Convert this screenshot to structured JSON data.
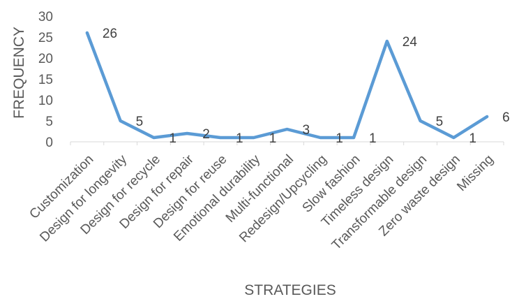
{
  "chart_data": {
    "type": "line",
    "categories": [
      "Customization",
      "Design for longevity",
      "Design for recycle",
      "Design for repair",
      "Design for reuse",
      "Emotional durability",
      "Multi-functional",
      "Redesign/Upcycling",
      "Slow fashion",
      "Timeless design",
      "Transformable design",
      "Zero waste design",
      "Missing"
    ],
    "values": [
      26,
      5,
      1,
      2,
      1,
      1,
      3,
      1,
      1,
      24,
      5,
      1,
      6
    ],
    "data_labels": [
      "26",
      "5",
      "1",
      "2",
      "1",
      "1",
      "3",
      "1",
      "1",
      "24",
      "5",
      "1",
      "6"
    ],
    "title": "",
    "xlabel": "STRATEGIES",
    "ylabel": "FREQUENCY",
    "ylim": [
      0,
      30
    ],
    "yticks": [
      "0",
      "5",
      "10",
      "15",
      "20",
      "25",
      "30"
    ],
    "grid": false,
    "legend": "none",
    "line_color": "#5B9BD5"
  }
}
